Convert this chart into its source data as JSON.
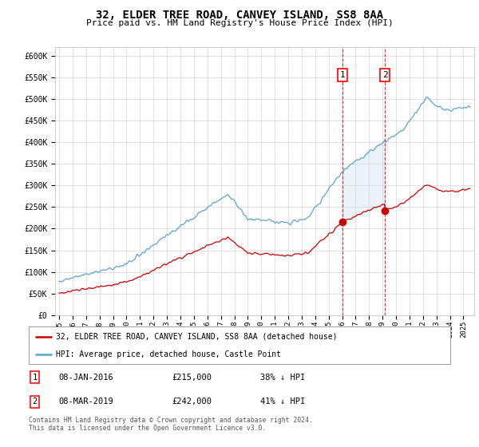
{
  "title": "32, ELDER TREE ROAD, CANVEY ISLAND, SS8 8AA",
  "subtitle": "Price paid vs. HM Land Registry's House Price Index (HPI)",
  "ylim": [
    0,
    620000
  ],
  "xlim_start": 1994.7,
  "xlim_end": 2025.8,
  "hpi_color": "#5ba3d0",
  "price_color": "#cc0000",
  "fill_color": "#c8dff0",
  "transaction1_date": 2016.04,
  "transaction1_price": 215000,
  "transaction2_date": 2019.18,
  "transaction2_price": 242000,
  "legend_label1": "32, ELDER TREE ROAD, CANVEY ISLAND, SS8 8AA (detached house)",
  "legend_label2": "HPI: Average price, detached house, Castle Point",
  "table_row1": [
    "1",
    "08-JAN-2016",
    "£215,000",
    "38% ↓ HPI"
  ],
  "table_row2": [
    "2",
    "08-MAR-2019",
    "£242,000",
    "41% ↓ HPI"
  ],
  "footnote": "Contains HM Land Registry data © Crown copyright and database right 2024.\nThis data is licensed under the Open Government Licence v3.0.",
  "background_color": "#ffffff",
  "grid_color": "#cccccc"
}
